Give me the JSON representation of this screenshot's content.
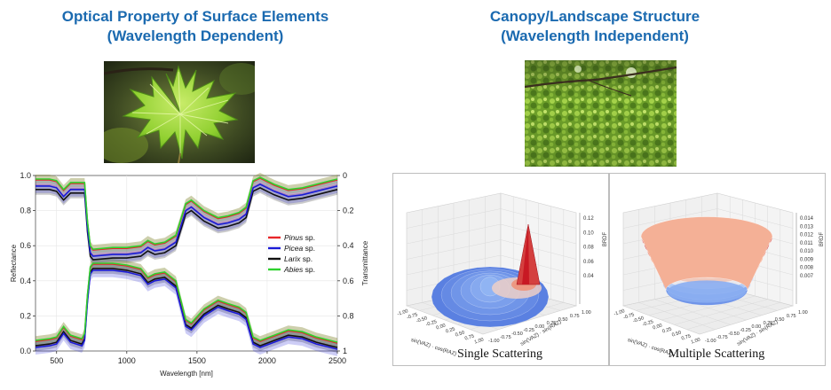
{
  "left": {
    "title_line1": "Optical Property of Surface Elements",
    "title_line2": "(Wavelength Dependent)"
  },
  "right": {
    "title_line1": "Canopy/Landscape Structure",
    "title_line2": "(Wavelength Independent)"
  },
  "spectral_chart": {
    "xlabel": "Wavelength [nm]",
    "ylabel_left": "Reflectance",
    "ylabel_right": "Transmittance",
    "xticks": [
      "500",
      "1000",
      "1500",
      "2000",
      "2500"
    ],
    "yticks_left": [
      "0.0",
      "0.2",
      "0.4",
      "0.6",
      "0.8",
      "1.0"
    ],
    "yticks_right": [
      "1",
      "0.8",
      "0.6",
      "0.4",
      "0.2",
      "0"
    ],
    "legend": [
      {
        "genus": "Pinus",
        "suffix": " sp.",
        "color": "#e8262a"
      },
      {
        "genus": "Picea",
        "suffix": " sp.",
        "color": "#1a1ad6"
      },
      {
        "genus": "Larix",
        "suffix": " sp.",
        "color": "#111111"
      },
      {
        "genus": "Abies",
        "suffix": " sp.",
        "color": "#2fd12f"
      }
    ]
  },
  "brdf_panels": [
    {
      "caption": "Single Scattering",
      "zlabel": "BRDF",
      "zticks": [
        "0.12",
        "0.10",
        "0.08",
        "0.06",
        "0.04"
      ],
      "xticks": [
        "-1.00",
        "-0.75",
        "-0.50",
        "-0.25",
        "0.00",
        "0.25",
        "0.50",
        "0.75",
        "1.00"
      ],
      "yticks": [
        "1.00",
        "0.75",
        "0.50",
        "0.25",
        "0.00",
        "-0.25",
        "-0.50",
        "-0.75",
        "-1.00"
      ],
      "xlabel": "sin(VAZ) · cos(RAZ)",
      "ylabel": "sin(VAZ) · sin(RAZ)"
    },
    {
      "caption": "Multiple Scattering",
      "zlabel": "BRDF",
      "zticks": [
        "0.014",
        "0.013",
        "0.012",
        "0.011",
        "0.010",
        "0.009",
        "0.008",
        "0.007"
      ],
      "xticks": [
        "-1.00",
        "-0.75",
        "-0.50",
        "-0.25",
        "0.00",
        "0.25",
        "0.50",
        "0.75",
        "1.00"
      ],
      "yticks": [
        "1.00",
        "0.75",
        "0.50",
        "0.25",
        "0.00",
        "-0.25",
        "-0.50",
        "-0.75",
        "-1.00"
      ],
      "xlabel": "sin(VAZ) · cos(RAZ)",
      "ylabel": "sin(VAZ) · sin(RAZ)"
    }
  ]
}
